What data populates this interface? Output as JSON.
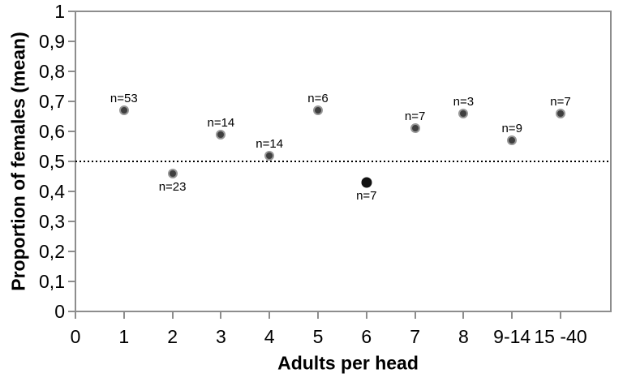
{
  "chart_data": {
    "type": "scatter",
    "title": "",
    "xlabel": "Adults per head",
    "ylabel": "Proportion of females (mean)",
    "ylim": [
      0,
      1
    ],
    "ytick_step": 0.1,
    "ytick_labels": [
      "0",
      "0,1",
      "0,2",
      "0,3",
      "0,4",
      "0,5",
      "0,6",
      "0,7",
      "0,8",
      "0,9",
      "1"
    ],
    "categories": [
      "0",
      "1",
      "2",
      "3",
      "4",
      "5",
      "6",
      "7",
      "8",
      "9-14",
      "15 -40"
    ],
    "reference_line": {
      "value": 0.5,
      "style": "dotted",
      "color": "#000000"
    },
    "points": [
      {
        "category": "1",
        "x_index": 1,
        "value": 0.67,
        "label": "n=53",
        "label_position": "above",
        "variant": "default"
      },
      {
        "category": "2",
        "x_index": 2,
        "value": 0.46,
        "label": "n=23",
        "label_position": "below",
        "variant": "default"
      },
      {
        "category": "3",
        "x_index": 3,
        "value": 0.59,
        "label": "n=14",
        "label_position": "above",
        "variant": "default"
      },
      {
        "category": "4",
        "x_index": 4,
        "value": 0.52,
        "label": "n=14",
        "label_position": "above",
        "variant": "default"
      },
      {
        "category": "5",
        "x_index": 5,
        "value": 0.67,
        "label": "n=6",
        "label_position": "above",
        "variant": "default"
      },
      {
        "category": "6",
        "x_index": 6,
        "value": 0.43,
        "label": "n=7",
        "label_position": "below",
        "variant": "solid-black"
      },
      {
        "category": "7",
        "x_index": 7,
        "value": 0.61,
        "label": "n=7",
        "label_position": "above",
        "variant": "default"
      },
      {
        "category": "8",
        "x_index": 8,
        "value": 0.66,
        "label": "n=3",
        "label_position": "above",
        "variant": "default"
      },
      {
        "category": "9-14",
        "x_index": 9,
        "value": 0.57,
        "label": "n=9",
        "label_position": "above",
        "variant": "default"
      },
      {
        "category": "15 -40",
        "x_index": 10,
        "value": 0.66,
        "label": "n=7",
        "label_position": "above",
        "variant": "default"
      }
    ],
    "legend": "none",
    "grid": "off",
    "colors": {
      "point_fill": "#3f3f3f",
      "point_border": "#979797",
      "point_solid_black": "#121212",
      "axis_line": "#8d8d8d",
      "text": "#000000",
      "background": "#ffffff"
    }
  }
}
